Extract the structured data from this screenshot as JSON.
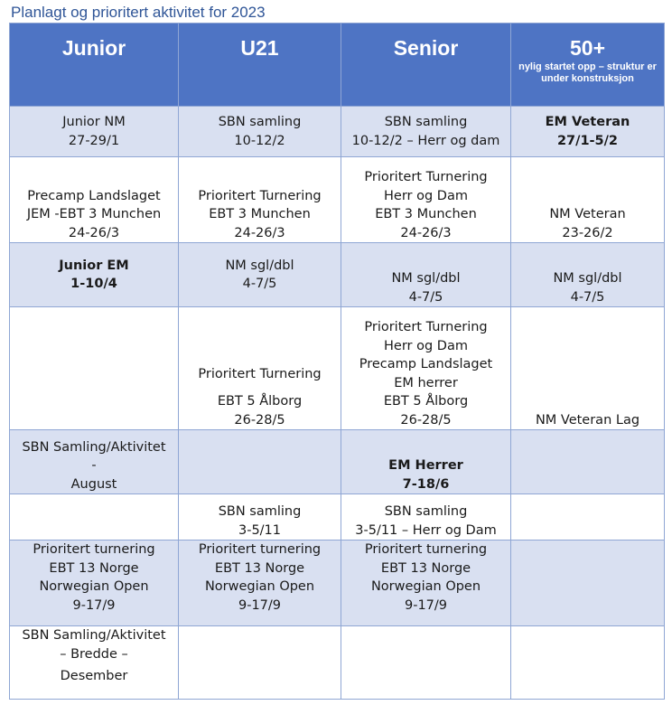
{
  "title": "Planlagt og prioritert aktivitet for 2023",
  "headers": [
    {
      "name": "Junior",
      "sub": ""
    },
    {
      "name": "U21",
      "sub": ""
    },
    {
      "name": "Senior",
      "sub": ""
    },
    {
      "name": "50+",
      "sub": "nylig startet opp – struktur er under konstruksjon"
    }
  ],
  "rows": [
    {
      "cells": [
        [
          "Junior NM",
          "27-29/1"
        ],
        [
          "SBN samling",
          "10-12/2"
        ],
        [
          "SBN samling",
          "10-12/2 – Herr og dam"
        ],
        [
          "EM Veteran",
          "27/1-5/2"
        ]
      ]
    },
    {
      "cells": [
        [
          "Precamp Landslaget",
          "JEM -EBT 3 Munchen",
          "24-26/3"
        ],
        [
          "Prioritert Turnering",
          "EBT 3 Munchen",
          "24-26/3"
        ],
        [
          "Prioritert Turnering",
          "Herr og Dam",
          "EBT 3 Munchen",
          "24-26/3"
        ],
        [
          "NM Veteran",
          "23-26/2"
        ]
      ]
    },
    {
      "cells": [
        [
          "Junior EM",
          "1-10/4"
        ],
        [
          "NM sgl/dbl",
          "4-7/5"
        ],
        [
          "NM sgl/dbl",
          "4-7/5"
        ],
        [
          "NM sgl/dbl",
          "4-7/5"
        ]
      ]
    },
    {
      "cells": [
        [],
        [
          "Prioritert Turnering",
          "EBT 5 Ålborg",
          "26-28/5"
        ],
        [
          "Prioritert Turnering",
          "Herr og Dam",
          "Precamp Landslaget",
          "EM herrer",
          "EBT 5 Ålborg",
          "26-28/5"
        ],
        [
          "NM Veteran Lag"
        ]
      ]
    },
    {
      "cells": [
        [
          "SBN Samling/Aktivitet",
          "-",
          "August"
        ],
        [],
        [
          "EM Herrer",
          "7-18/6"
        ],
        []
      ]
    },
    {
      "cells": [
        [],
        [
          "SBN samling",
          "3-5/11"
        ],
        [
          "SBN samling",
          "3-5/11 – Herr og Dam"
        ],
        []
      ]
    },
    {
      "cells": [
        [
          "Prioritert turnering",
          "EBT 13 Norge",
          "Norwegian Open",
          "9-17/9"
        ],
        [
          "Prioritert turnering",
          "EBT 13 Norge",
          "Norwegian Open",
          "9-17/9"
        ],
        [
          "Prioritert turnering",
          "EBT 13 Norge",
          "Norwegian Open",
          "9-17/9"
        ],
        []
      ]
    },
    {
      "cells": [
        [
          "SBN Samling/Aktivitet",
          "– Bredde –",
          "Desember"
        ],
        [],
        [],
        []
      ]
    }
  ]
}
